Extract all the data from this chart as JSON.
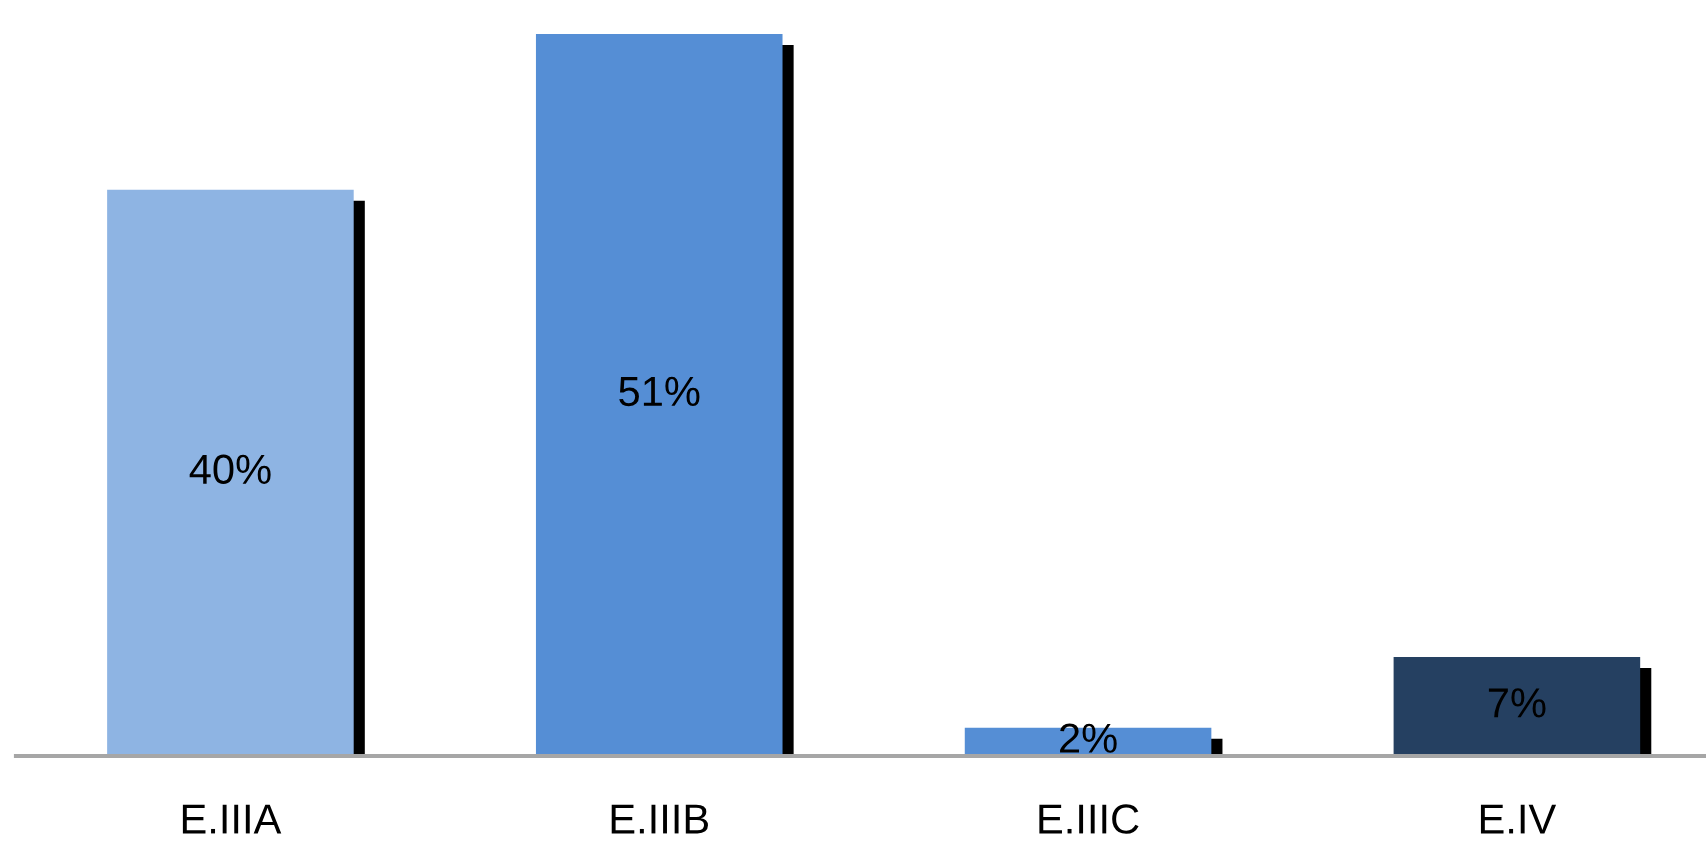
{
  "chart_data": {
    "type": "bar",
    "categories": [
      "E.IIIA",
      "E.IIIB",
      "E.IIIC",
      "E.IV"
    ],
    "values": [
      40,
      51,
      2,
      7
    ],
    "colors": [
      "#8eb4e3",
      "#558ed5",
      "#558ed5",
      "#254061"
    ],
    "value_labels": [
      "40%",
      "51%",
      "2%",
      "7%"
    ],
    "tick_labels": "x"
  }
}
